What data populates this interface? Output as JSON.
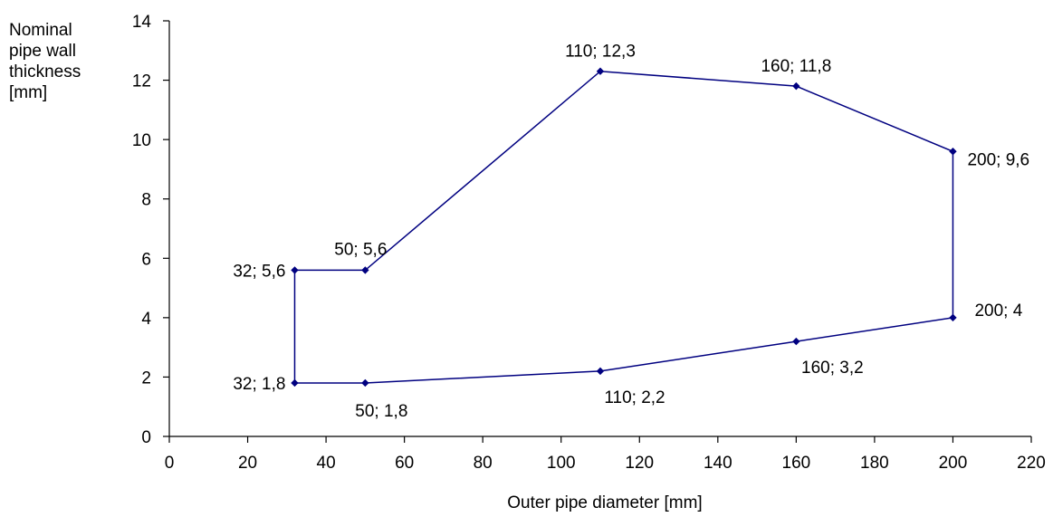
{
  "chart_data": {
    "type": "line",
    "title": "",
    "xlabel": "Outer pipe diameter [mm]",
    "ylabel_lines": [
      "Nominal",
      "pipe wall",
      "thickness",
      "[mm]"
    ],
    "xlim": [
      0,
      220
    ],
    "ylim": [
      0,
      14
    ],
    "x_ticks": [
      0,
      20,
      40,
      60,
      80,
      100,
      120,
      140,
      160,
      180,
      200,
      220
    ],
    "y_ticks": [
      0,
      2,
      4,
      6,
      8,
      10,
      12,
      14
    ],
    "grid": false,
    "legend": "none",
    "series": [
      {
        "color": "#000080",
        "closed": true,
        "points": [
          {
            "x": 32,
            "y": 1.8,
            "label": "32; 1,8"
          },
          {
            "x": 50,
            "y": 1.8,
            "label": "50; 1,8"
          },
          {
            "x": 110,
            "y": 2.2,
            "label": "110; 2,2"
          },
          {
            "x": 160,
            "y": 3.2,
            "label": "160; 3,2"
          },
          {
            "x": 200,
            "y": 4,
            "label": "200; 4"
          },
          {
            "x": 200,
            "y": 9.6,
            "label": "200; 9,6"
          },
          {
            "x": 160,
            "y": 11.8,
            "label": "160; 11,8"
          },
          {
            "x": 110,
            "y": 12.3,
            "label": "110; 12,3"
          },
          {
            "x": 50,
            "y": 5.6,
            "label": "50; 5,6"
          },
          {
            "x": 32,
            "y": 5.6,
            "label": "32; 5,6"
          }
        ]
      }
    ]
  }
}
